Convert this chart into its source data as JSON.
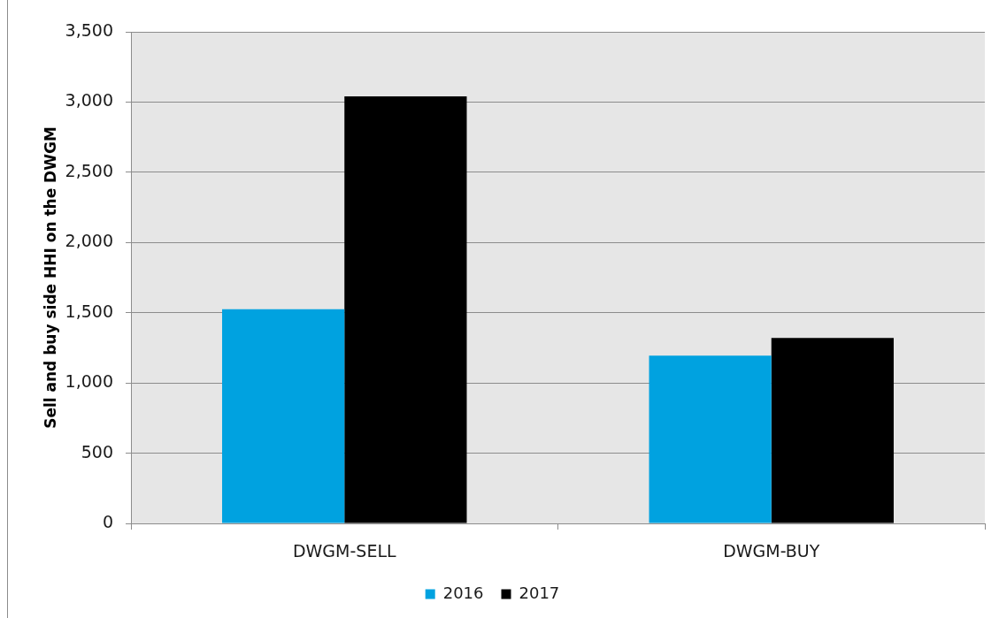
{
  "chart_data": {
    "type": "bar",
    "ylabel": "Sell and buy side HHI on the DWGM",
    "categories": [
      "DWGM-SELL",
      "DWGM-BUY"
    ],
    "series": [
      {
        "name": "2016",
        "color": "#00a2e0",
        "values": [
          1525,
          1195
        ]
      },
      {
        "name": "2017",
        "color": "#000000",
        "values": [
          3040,
          1320
        ]
      }
    ],
    "ylim": [
      0,
      3500
    ],
    "yticks": [
      0,
      500,
      {
        "value": 1000,
        "label": "1,000"
      },
      {
        "value": 1500,
        "label": "1,500"
      },
      {
        "value": 2000,
        "label": "2,000"
      },
      {
        "value": 2500,
        "label": "2,500"
      },
      {
        "value": 3000,
        "label": "3,000"
      },
      {
        "value": 3500,
        "label": "3,500"
      }
    ],
    "grid": "y",
    "legend": "bottom"
  }
}
